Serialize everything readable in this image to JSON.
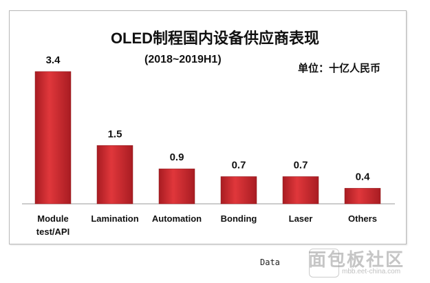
{
  "chart_data": {
    "type": "bar",
    "title": "OLED制程国内设备供应商表现",
    "subtitle": "(2018~2019H1)",
    "unit": "单位：十亿人民币",
    "categories": [
      [
        "Module",
        "test/API"
      ],
      [
        "Lamination"
      ],
      [
        "Automation"
      ],
      [
        "Bonding"
      ],
      [
        "Laser"
      ],
      [
        "Others"
      ]
    ],
    "values": [
      3.4,
      1.5,
      0.9,
      0.7,
      0.7,
      0.4
    ],
    "value_labels": [
      "3.4",
      "1.5",
      "0.9",
      "0.7",
      "0.7",
      "0.4"
    ],
    "ylim": [
      0,
      3.6
    ],
    "bar_color": "#c8262c",
    "grid": false,
    "legend": "none"
  },
  "source": "Data",
  "watermark": {
    "name": "面包板社区",
    "url": "mbb.eet-china.com"
  }
}
